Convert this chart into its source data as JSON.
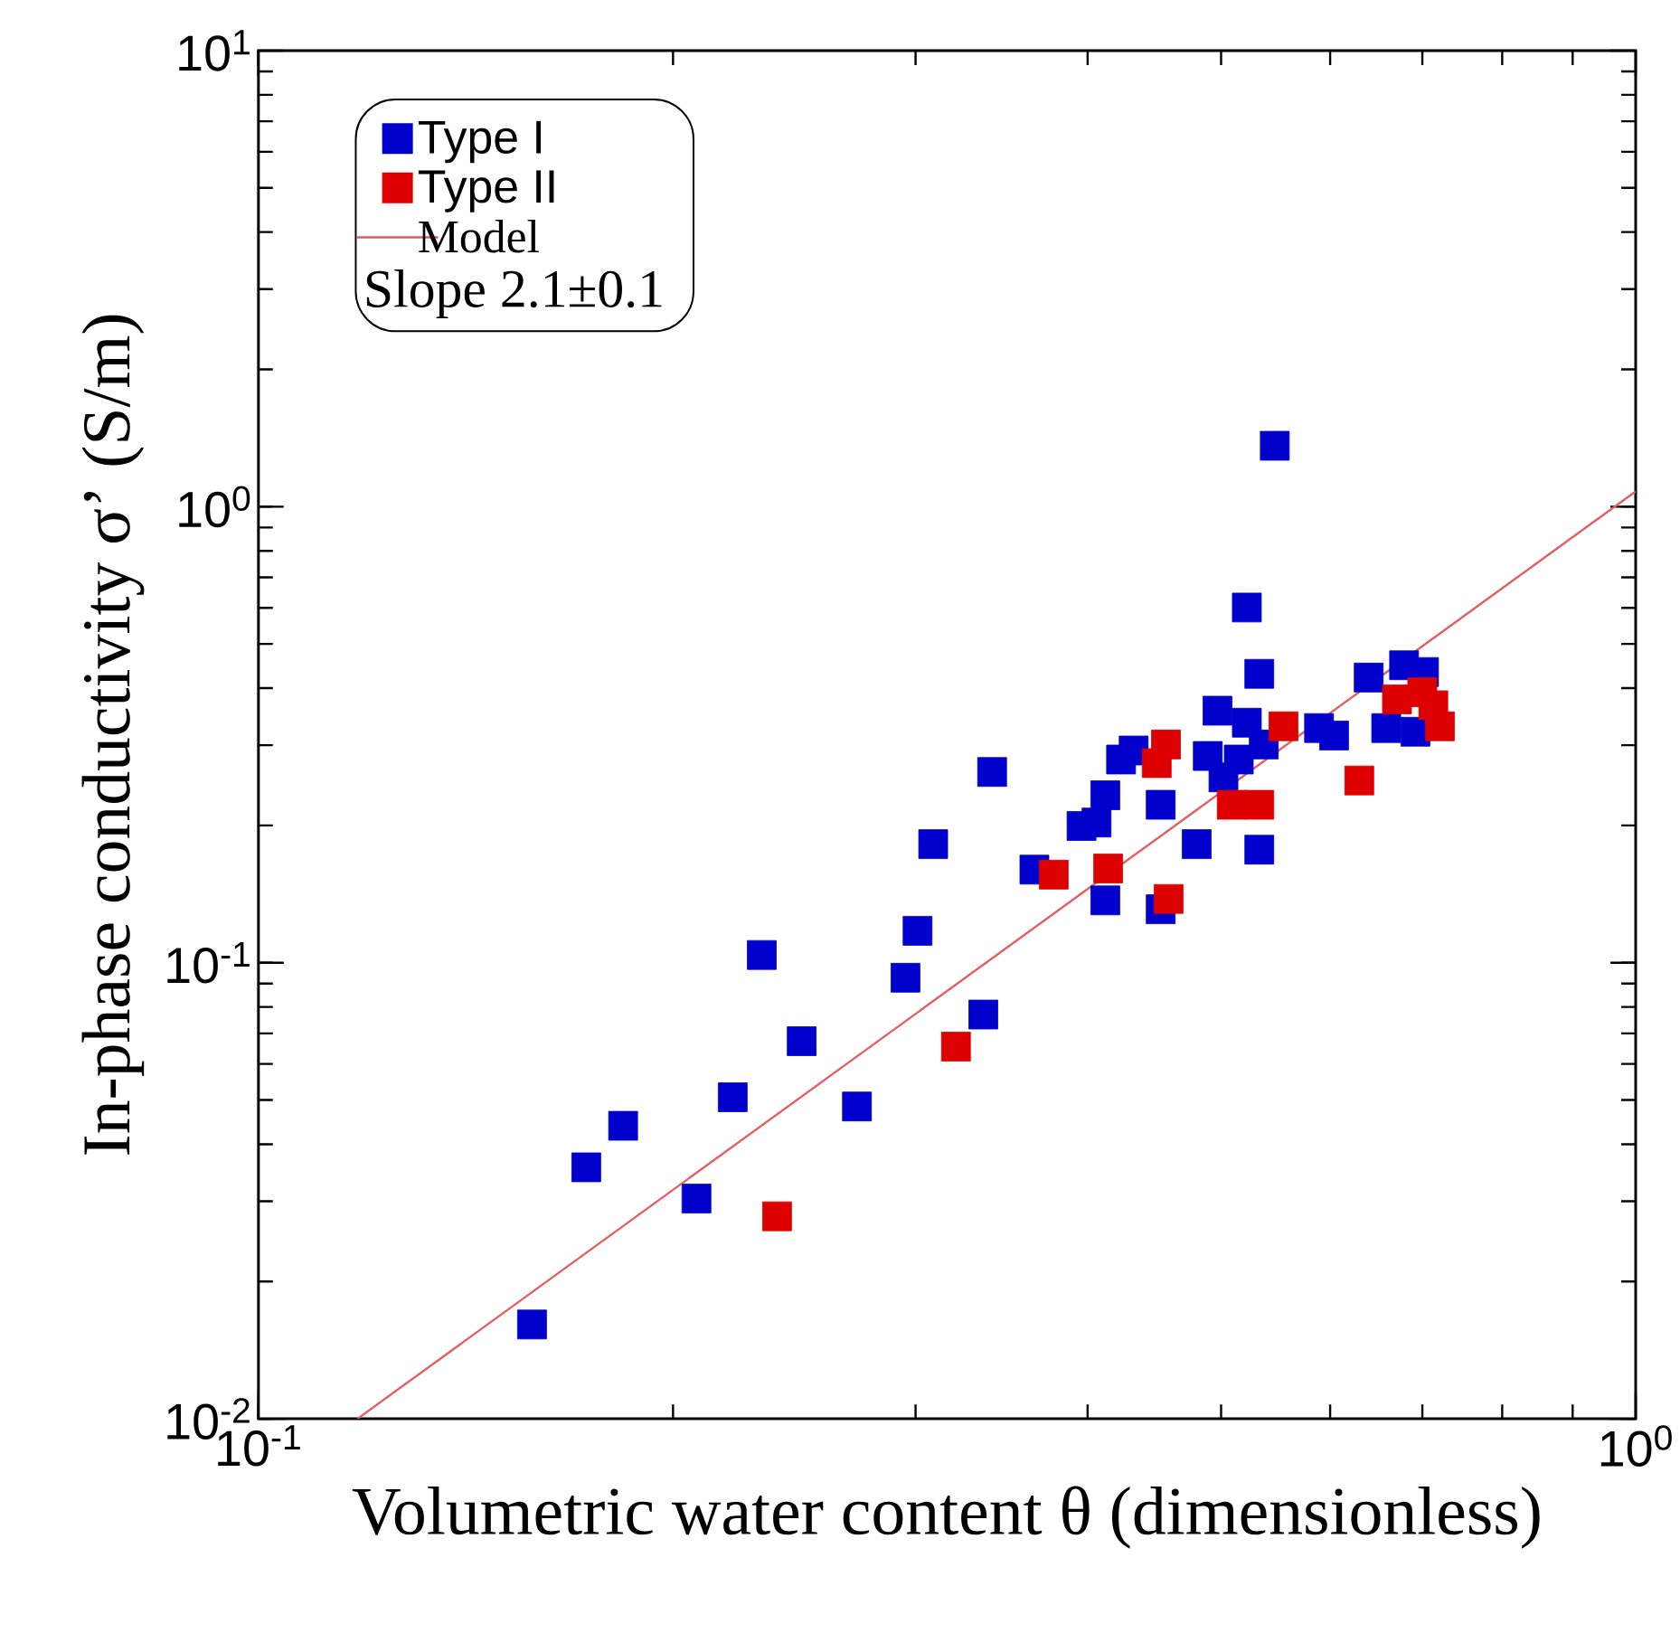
{
  "chart_data": {
    "type": "scatter",
    "xlabel": "Volumetric water content θ (dimensionless)",
    "ylabel": "In-phase conductivity σ’ (S/m)",
    "log": "xy",
    "xlim": [
      0.1,
      1
    ],
    "ylim": [
      0.01,
      10
    ],
    "xticks": [
      {
        "value": 0.1,
        "label": "10$^{-1}$"
      },
      {
        "value": 1,
        "label": "10$^{0}$"
      }
    ],
    "yticks": [
      {
        "value": 0.01,
        "label": "10$^{-2}$"
      },
      {
        "value": 0.1,
        "label": "10$^{-1}$"
      },
      {
        "value": 1,
        "label": "10$^{0}$"
      },
      {
        "value": 10,
        "label": "10$^{1}$"
      }
    ],
    "marker": "square",
    "grid": false,
    "legend": "top left",
    "annotations": [
      "Slope 2.1±0.1"
    ],
    "series": [
      {
        "name": "Type I",
        "color": "#0000cc",
        "x": [
          0.158,
          0.173,
          0.184,
          0.208,
          0.221,
          0.232,
          0.248,
          0.272,
          0.295,
          0.301,
          0.309,
          0.336,
          0.341,
          0.366,
          0.412,
          0.452,
          0.396,
          0.406,
          0.423,
          0.412,
          0.432,
          0.452,
          0.48,
          0.533,
          0.497,
          0.522,
          0.489,
          0.515,
          0.537,
          0.502,
          0.547,
          0.522,
          0.533,
          0.589,
          0.604,
          0.64,
          0.679,
          0.702,
          0.659,
          0.692
        ],
        "values": [
          0.0161,
          0.0356,
          0.0439,
          0.0304,
          0.0507,
          0.104,
          0.0673,
          0.0484,
          0.0927,
          0.1175,
          0.182,
          0.077,
          0.262,
          0.16,
          0.137,
          0.131,
          0.1995,
          0.203,
          0.279,
          0.233,
          0.292,
          0.222,
          0.182,
          0.177,
          0.357,
          0.336,
          0.284,
          0.279,
          0.301,
          0.255,
          1.36,
          0.601,
          0.43,
          0.327,
          0.315,
          0.422,
          0.449,
          0.434,
          0.327,
          0.321
        ]
      },
      {
        "name": "Type II",
        "color": "#dd0000",
        "x": [
          0.238,
          0.321,
          0.378,
          0.414,
          0.458,
          0.456,
          0.449,
          0.509,
          0.533,
          0.555,
          0.63,
          0.671,
          0.7,
          0.713,
          0.721
        ],
        "values": [
          0.0278,
          0.0655,
          0.156,
          0.161,
          0.138,
          0.301,
          0.274,
          0.222,
          0.222,
          0.33,
          0.251,
          0.378,
          0.392,
          0.367,
          0.33
        ]
      },
      {
        "name": "Model",
        "type": "line",
        "color": "#e06060",
        "marker": "none",
        "x": [
          0.118,
          1
        ],
        "values": [
          0.01,
          1.08
        ]
      }
    ]
  }
}
